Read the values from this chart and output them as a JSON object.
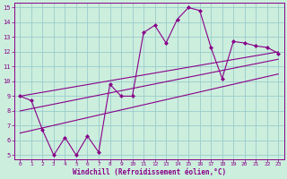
{
  "xlabel": "Windchill (Refroidissement éolien,°C)",
  "bg_color": "#cceedd",
  "line_color": "#880088",
  "grid_color": "#99cccc",
  "xlim": [
    -0.5,
    23.5
  ],
  "ylim": [
    4.7,
    15.3
  ],
  "x_ticks": [
    0,
    1,
    2,
    3,
    4,
    5,
    6,
    7,
    8,
    9,
    10,
    11,
    12,
    13,
    14,
    15,
    16,
    17,
    18,
    19,
    20,
    21,
    22,
    23
  ],
  "y_ticks": [
    5,
    6,
    7,
    8,
    9,
    10,
    11,
    12,
    13,
    14,
    15
  ],
  "main_line_x": [
    0,
    1,
    2,
    3,
    4,
    5,
    6,
    7,
    8,
    9,
    10,
    11,
    12,
    13,
    14,
    15,
    16,
    17,
    18,
    19,
    20,
    21,
    22,
    23
  ],
  "main_line_y": [
    9.0,
    8.7,
    6.7,
    5.0,
    6.2,
    5.0,
    6.3,
    5.2,
    9.8,
    9.0,
    9.0,
    13.3,
    13.8,
    12.6,
    14.2,
    15.0,
    14.8,
    12.3,
    10.2,
    12.7,
    12.6,
    12.4,
    12.3,
    11.9
  ],
  "upper_line_x": [
    0,
    23
  ],
  "upper_line_y": [
    9.0,
    12.0
  ],
  "mid_line_x": [
    0,
    23
  ],
  "mid_line_y": [
    8.0,
    11.5
  ],
  "lower_line_x": [
    0,
    23
  ],
  "lower_line_y": [
    6.5,
    10.5
  ]
}
